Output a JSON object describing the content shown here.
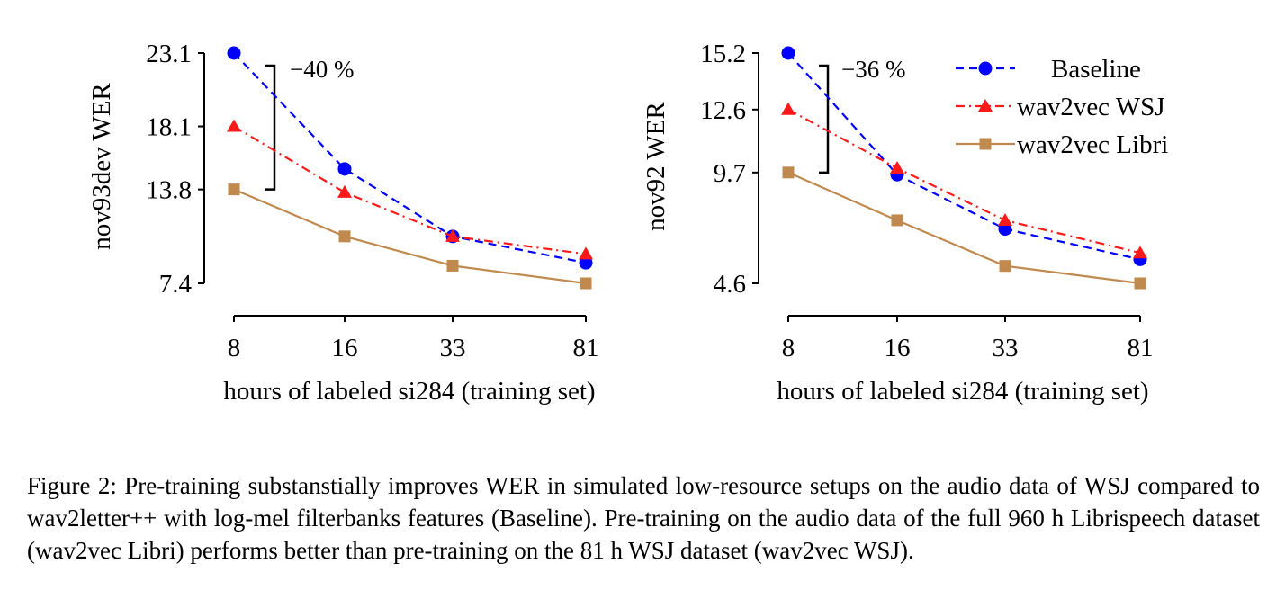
{
  "chart_data": [
    {
      "type": "line",
      "x_categories": [
        "8",
        "16",
        "33",
        "81"
      ],
      "xlabel": "hours of labeled si284 (training set)",
      "ylabel": "nov93dev WER",
      "y_ticks": [
        "7.4",
        "13.8",
        "18.1",
        "23.1"
      ],
      "ylim": [
        7.4,
        23.1
      ],
      "annotation": "−40 %",
      "series": [
        {
          "name": "Baseline",
          "color": "#0000ff",
          "marker": "circle",
          "dash": "dashed",
          "values": [
            23.1,
            15.2,
            10.6,
            8.8
          ]
        },
        {
          "name": "wav2vec WSJ",
          "color": "#ff1a1a",
          "marker": "triangle",
          "dash": "dashdot",
          "values": [
            18.1,
            13.6,
            10.6,
            9.4
          ]
        },
        {
          "name": "wav2vec Libri",
          "color": "#c08a4e",
          "marker": "square",
          "dash": "solid",
          "values": [
            13.8,
            10.6,
            8.6,
            7.4
          ]
        }
      ]
    },
    {
      "type": "line",
      "x_categories": [
        "8",
        "16",
        "33",
        "81"
      ],
      "xlabel": "hours of labeled si284 (training set)",
      "ylabel": "nov92 WER",
      "y_ticks": [
        "4.6",
        "9.7",
        "12.6",
        "15.2"
      ],
      "ylim": [
        4.6,
        15.2
      ],
      "annotation": "−36 %",
      "legend": "top-right",
      "series": [
        {
          "name": "Baseline",
          "color": "#0000ff",
          "marker": "circle",
          "dash": "dashed",
          "values": [
            15.2,
            9.6,
            7.1,
            5.7
          ]
        },
        {
          "name": "wav2vec WSJ",
          "color": "#ff1a1a",
          "marker": "triangle",
          "dash": "dashdot",
          "values": [
            12.6,
            9.9,
            7.5,
            6.0
          ]
        },
        {
          "name": "wav2vec Libri",
          "color": "#c08a4e",
          "marker": "square",
          "dash": "solid",
          "values": [
            9.7,
            7.5,
            5.4,
            4.6
          ]
        }
      ]
    }
  ],
  "caption": "Figure 2: Pre-training substanstially improves WER in simulated low-resource setups on the audio data of WSJ compared to wav2letter++ with log-mel filterbanks features (Baseline). Pre-training on the audio data of the full 960 h Librispeech dataset (wav2vec Libri) performs better than pre-training on the 81 h WSJ dataset (wav2vec WSJ)."
}
